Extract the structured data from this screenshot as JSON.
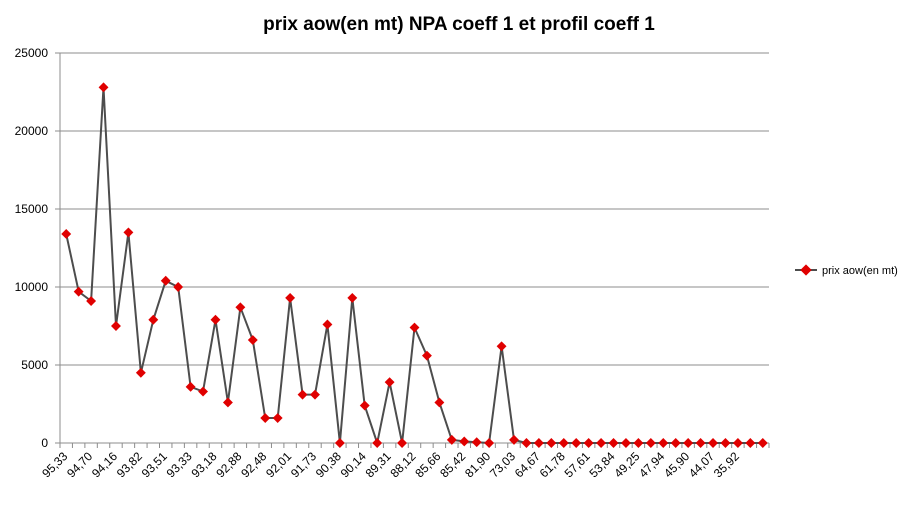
{
  "chart_data": {
    "type": "line",
    "title": "prix aow(en mt) NPA coeff 1 et profil coeff 1",
    "xlabel": "",
    "ylabel": "",
    "ylim": [
      0,
      25000
    ],
    "yticks": [
      0,
      5000,
      10000,
      15000,
      20000,
      25000
    ],
    "grid": true,
    "legend_position": "right",
    "x_tick_labels": [
      "95,33",
      "94,70",
      "94,16",
      "93,82",
      "93,51",
      "93,33",
      "93,18",
      "92,88",
      "92,48",
      "92,01",
      "91,73",
      "90,38",
      "90,14",
      "89,31",
      "88,12",
      "85,66",
      "85,42",
      "81,90",
      "73,03",
      "64,67",
      "61,78",
      "57,61",
      "53,84",
      "49,25",
      "47,94",
      "45,90",
      "44,07",
      "35,92"
    ],
    "series": [
      {
        "name": "prix aow(en mt)",
        "color": "#e00000",
        "line_color": "#4d4d4d",
        "values": [
          13400,
          9700,
          9100,
          22800,
          7500,
          13500,
          4500,
          7900,
          10400,
          10000,
          3600,
          3300,
          7900,
          2600,
          8700,
          6600,
          1600,
          1600,
          9300,
          3100,
          3100,
          7600,
          0,
          9300,
          2400,
          0,
          3900,
          0,
          7400,
          5600,
          2600,
          200,
          100,
          50,
          0,
          6200,
          200,
          0,
          0,
          0,
          0,
          0,
          0,
          0,
          0,
          0,
          0,
          0,
          0,
          0,
          0,
          0,
          0,
          0,
          0,
          0,
          0
        ]
      }
    ]
  }
}
